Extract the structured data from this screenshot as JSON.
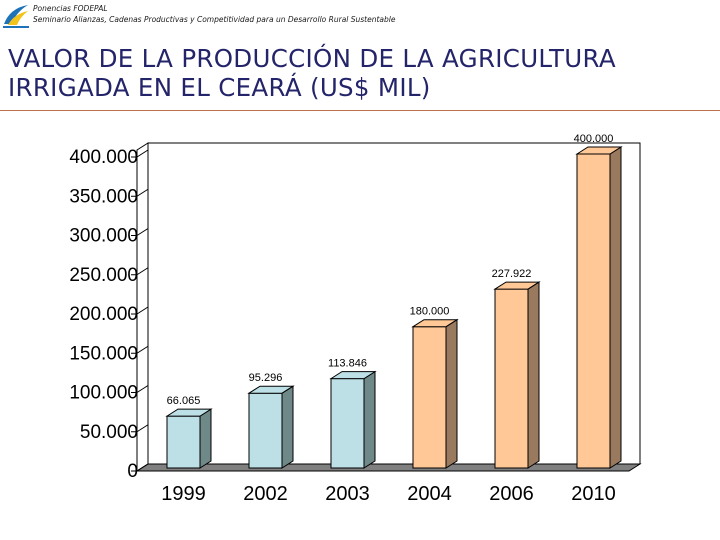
{
  "header": {
    "line1": "Ponencias FODEPAL",
    "line2": "Seminario Alianzas, Cadenas Productivas y Competitividad para un Desarrollo Rural Sustentable"
  },
  "title": {
    "line1": "VALOR DE LA PRODUCCIÓN DE LA AGRICULTURA",
    "line2": "IRRIGADA EN EL CEARÁ (US$ MIL)"
  },
  "colors": {
    "title": "#24246a",
    "rule": "#c0704a",
    "bar_blue": "#bde0e6",
    "bar_blue_side": "#6f8888",
    "bar_orange": "#ffc896",
    "bar_orange_side": "#9a7a5e",
    "wall": "#ffffff",
    "floor": "#808080"
  },
  "chart_data": {
    "type": "bar",
    "title": "VALOR DE LA PRODUCCIÓN DE LA AGRICULTURA IRRIGADA EN EL CEARÁ (US$ MIL)",
    "xlabel": "",
    "ylabel": "",
    "ylim": [
      0,
      400000
    ],
    "ytick_values": [
      0,
      50000,
      100000,
      150000,
      200000,
      250000,
      300000,
      350000,
      400000
    ],
    "ytick_labels": [
      "0",
      "50.000",
      "100.000",
      "150.000",
      "200.000",
      "250.000",
      "300.000",
      "350.000",
      "400.000"
    ],
    "categories": [
      "1999",
      "2002",
      "2003",
      "2004",
      "2006",
      "2010"
    ],
    "values": [
      66065,
      95296,
      113846,
      180000,
      227922,
      400000
    ],
    "data_labels": [
      "66.065",
      "95.296",
      "113.846",
      "180.000",
      "227.922",
      "400.000"
    ],
    "color_keys": [
      "blue",
      "blue",
      "blue",
      "orange",
      "orange",
      "orange"
    ],
    "grid": false,
    "style": "3d-column"
  }
}
